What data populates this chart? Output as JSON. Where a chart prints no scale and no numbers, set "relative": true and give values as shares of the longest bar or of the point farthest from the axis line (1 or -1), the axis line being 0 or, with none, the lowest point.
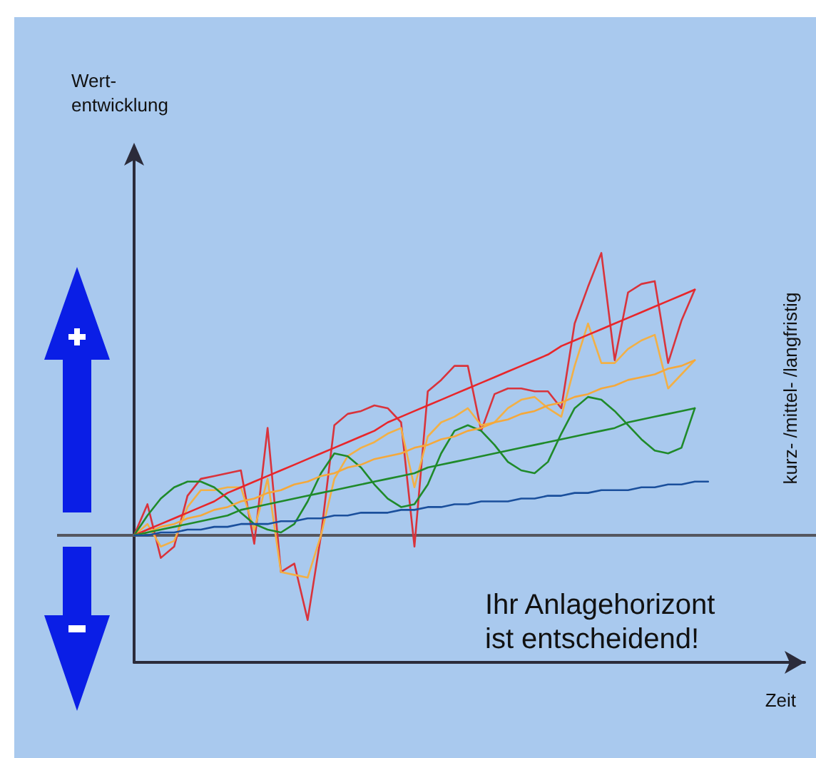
{
  "chart_data": {
    "type": "line",
    "relative": true,
    "xlabel": "Zeit",
    "marker": "none",
    "line_style": "solid",
    "annotations": [
      "kurz- /mittel- /langfristig",
      "Ihr Anlagehorizont\nist entscheidend!",
      "Wert-\nentwicklung"
    ],
    "categories": [
      null,
      null,
      null,
      null,
      null,
      null,
      null,
      null,
      null,
      null,
      null,
      null,
      null,
      null,
      null,
      null,
      null,
      null,
      null,
      null,
      null,
      null,
      null,
      null,
      null,
      null,
      null,
      null,
      null,
      null,
      null,
      null,
      null,
      null,
      null,
      null,
      null,
      null,
      null,
      null,
      null,
      null,
      null,
      null
    ],
    "series": [
      {
        "color": "#d9333b",
        "values": [
          0,
          0.11,
          -0.08,
          -0.04,
          0.14,
          0.2,
          0.21,
          0.22,
          0.23,
          -0.03,
          0.38,
          -0.13,
          -0.1,
          -0.3,
          0,
          0.39,
          0.43,
          0.44,
          0.46,
          0.45,
          0.4,
          -0.04,
          0.51,
          0.55,
          0.6,
          0.6,
          0.37,
          0.5,
          0.52,
          0.52,
          0.51,
          0.51,
          0.45,
          0.75,
          0.88,
          1,
          0.62,
          0.86,
          0.89,
          0.9,
          0.61,
          0.76,
          0.87,
          null
        ]
      },
      {
        "color": "#f2b046",
        "values": [
          0,
          0.04,
          -0.04,
          -0.02,
          0.1,
          0.16,
          0.16,
          0.17,
          0.17,
          0.02,
          0.2,
          -0.13,
          -0.14,
          -0.15,
          0,
          0.2,
          0.28,
          0.31,
          0.33,
          0.36,
          0.38,
          0.17,
          0.35,
          0.4,
          0.42,
          0.45,
          0.39,
          0.4,
          0.45,
          0.48,
          0.49,
          0.45,
          0.42,
          0.6,
          0.75,
          0.61,
          0.61,
          0.66,
          0.69,
          0.71,
          0.52,
          0.57,
          0.62,
          null
        ]
      },
      {
        "color": "#1f8a2a",
        "values": [
          0,
          0.07,
          0.13,
          0.17,
          0.19,
          0.19,
          0.17,
          0.13,
          0.08,
          0.04,
          0.02,
          0.01,
          0.04,
          0.12,
          0.22,
          0.29,
          0.28,
          0.24,
          0.18,
          0.13,
          0.1,
          0.11,
          0.18,
          0.29,
          0.37,
          0.39,
          0.37,
          0.32,
          0.26,
          0.23,
          0.22,
          0.26,
          0.36,
          0.45,
          0.49,
          0.48,
          0.44,
          0.39,
          0.34,
          0.3,
          0.29,
          0.31,
          0.45,
          null
        ]
      },
      {
        "color": "#e8262a",
        "values": [
          0,
          0.02,
          0.04,
          0.06,
          0.08,
          0.1,
          0.12,
          0.15,
          0.17,
          0.19,
          0.21,
          0.23,
          0.25,
          0.27,
          0.29,
          0.31,
          0.33,
          0.35,
          0.37,
          0.4,
          0.42,
          0.44,
          0.46,
          0.48,
          0.5,
          0.52,
          0.54,
          0.56,
          0.58,
          0.6,
          0.62,
          0.64,
          0.67,
          0.69,
          0.71,
          0.73,
          0.75,
          0.77,
          0.79,
          0.81,
          0.83,
          0.85,
          0.87,
          null
        ]
      },
      {
        "color": "#f5a83a",
        "values": [
          0,
          0.01,
          0.03,
          0.04,
          0.06,
          0.07,
          0.09,
          0.1,
          0.12,
          0.13,
          0.15,
          0.16,
          0.18,
          0.19,
          0.21,
          0.22,
          0.24,
          0.25,
          0.27,
          0.28,
          0.29,
          0.31,
          0.32,
          0.34,
          0.35,
          0.37,
          0.38,
          0.4,
          0.41,
          0.43,
          0.44,
          0.46,
          0.47,
          0.49,
          0.5,
          0.52,
          0.53,
          0.55,
          0.56,
          0.57,
          0.59,
          0.6,
          0.62,
          null
        ]
      },
      {
        "color": "#1f8a2a",
        "values": [
          0,
          0.01,
          0.02,
          0.03,
          0.04,
          0.05,
          0.06,
          0.07,
          0.09,
          0.1,
          0.11,
          0.12,
          0.13,
          0.14,
          0.15,
          0.16,
          0.17,
          0.18,
          0.19,
          0.2,
          0.21,
          0.22,
          0.24,
          0.25,
          0.26,
          0.27,
          0.28,
          0.29,
          0.3,
          0.31,
          0.32,
          0.33,
          0.34,
          0.35,
          0.36,
          0.37,
          0.38,
          0.4,
          0.41,
          0.42,
          0.43,
          0.44,
          0.45,
          null
        ]
      },
      {
        "color": "#1a4f9c",
        "values": [
          0,
          0,
          0.01,
          0.01,
          0.02,
          0.02,
          0.03,
          0.03,
          0.04,
          0.04,
          0.04,
          0.05,
          0.05,
          0.06,
          0.06,
          0.07,
          0.07,
          0.08,
          0.08,
          0.08,
          0.09,
          0.09,
          0.1,
          0.1,
          0.11,
          0.11,
          0.12,
          0.12,
          0.12,
          0.13,
          0.13,
          0.14,
          0.14,
          0.15,
          0.15,
          0.16,
          0.16,
          0.16,
          0.17,
          0.17,
          0.18,
          0.18,
          0.19,
          0.19
        ]
      }
    ]
  }
}
